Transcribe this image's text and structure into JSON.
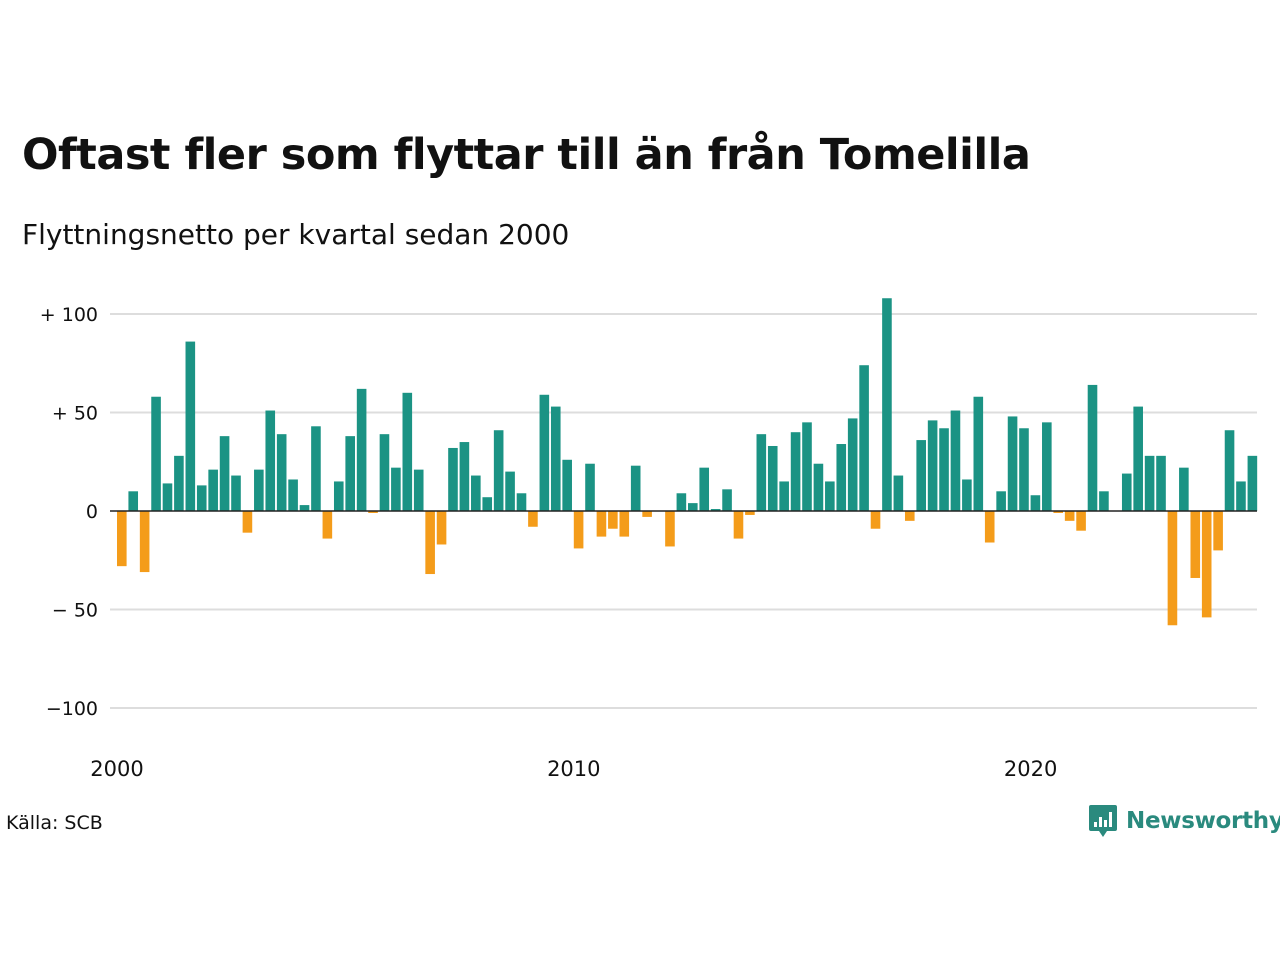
{
  "title": "Oftast fler som flyttar till än från Tomelilla",
  "subtitle": "Flyttningsnetto per kvartal sedan 2000",
  "source": "Källa: SCB",
  "brand": "Newsworthy",
  "colors": {
    "positive": "#1b9384",
    "negative": "#f49c1a",
    "grid": "#dddddd",
    "zero": "#222222",
    "brand": "#2a8a7e"
  },
  "chart_data": {
    "type": "bar",
    "title": "Oftast fler som flyttar till än från Tomelilla",
    "subtitle": "Flyttningsnetto per kvartal sedan 2000",
    "xlabel": "",
    "ylabel": "",
    "ylim": [
      -110,
      110
    ],
    "y_ticks": [
      {
        "value": 100,
        "label": "+ 100"
      },
      {
        "value": 50,
        "label": "+  50"
      },
      {
        "value": 0,
        "label": "0"
      },
      {
        "value": -50,
        "label": "− 50"
      },
      {
        "value": -100,
        "label": "−100"
      }
    ],
    "x_ticks": [
      {
        "year": 2000,
        "label": "2000"
      },
      {
        "year": 2010,
        "label": "2010"
      },
      {
        "year": 2020,
        "label": "2020"
      }
    ],
    "grid": true,
    "legend": "none",
    "start": "2000 Q1",
    "categories": [
      "2000 Q1",
      "2000 Q2",
      "2000 Q3",
      "2000 Q4",
      "2001 Q1",
      "2001 Q2",
      "2001 Q3",
      "2001 Q4",
      "2002 Q1",
      "2002 Q2",
      "2002 Q3",
      "2002 Q4",
      "2003 Q1",
      "2003 Q2",
      "2003 Q3",
      "2003 Q4",
      "2004 Q1",
      "2004 Q2",
      "2004 Q3",
      "2004 Q4",
      "2005 Q1",
      "2005 Q2",
      "2005 Q3",
      "2005 Q4",
      "2006 Q1",
      "2006 Q2",
      "2006 Q3",
      "2006 Q4",
      "2007 Q1",
      "2007 Q2",
      "2007 Q3",
      "2007 Q4",
      "2008 Q1",
      "2008 Q2",
      "2008 Q3",
      "2008 Q4",
      "2009 Q1",
      "2009 Q2",
      "2009 Q3",
      "2009 Q4",
      "2010 Q1",
      "2010 Q2",
      "2010 Q3",
      "2010 Q4",
      "2011 Q1",
      "2011 Q2",
      "2011 Q3",
      "2011 Q4",
      "2012 Q1",
      "2012 Q2",
      "2012 Q3",
      "2012 Q4",
      "2013 Q1",
      "2013 Q2",
      "2013 Q3",
      "2013 Q4",
      "2014 Q1",
      "2014 Q2",
      "2014 Q3",
      "2014 Q4",
      "2015 Q1",
      "2015 Q2",
      "2015 Q3",
      "2015 Q4",
      "2016 Q1",
      "2016 Q2",
      "2016 Q3",
      "2016 Q4",
      "2017 Q1",
      "2017 Q2",
      "2017 Q3",
      "2017 Q4",
      "2018 Q1",
      "2018 Q2",
      "2018 Q3",
      "2018 Q4",
      "2019 Q1",
      "2019 Q2",
      "2019 Q3",
      "2019 Q4",
      "2020 Q1",
      "2020 Q2",
      "2020 Q3",
      "2020 Q4",
      "2021 Q1",
      "2021 Q2",
      "2021 Q3",
      "2021 Q4",
      "2022 Q1",
      "2022 Q2",
      "2022 Q3",
      "2022 Q4",
      "2023 Q1",
      "2023 Q2",
      "2023 Q3",
      "2023 Q4",
      "2024 Q1",
      "2024 Q2",
      "2024 Q3",
      "2024 Q4"
    ],
    "values": [
      -28,
      10,
      -31,
      58,
      14,
      28,
      86,
      13,
      21,
      38,
      18,
      -11,
      21,
      51,
      39,
      16,
      3,
      43,
      -14,
      15,
      38,
      62,
      -1,
      39,
      22,
      60,
      21,
      -32,
      -17,
      32,
      35,
      18,
      7,
      41,
      20,
      9,
      -8,
      59,
      53,
      26,
      -19,
      24,
      -13,
      -9,
      -13,
      23,
      -3,
      0,
      -18,
      9,
      4,
      22,
      1,
      11,
      -14,
      -2,
      39,
      33,
      15,
      40,
      45,
      24,
      15,
      34,
      47,
      74,
      -9,
      108,
      18,
      -5,
      36,
      46,
      42,
      51,
      16,
      58,
      -16,
      10,
      48,
      42,
      8,
      45,
      -1,
      -5,
      -10,
      64,
      10,
      0,
      19,
      53,
      28,
      28,
      -58,
      22,
      -34,
      -54,
      -20,
      41,
      15,
      28
    ]
  }
}
